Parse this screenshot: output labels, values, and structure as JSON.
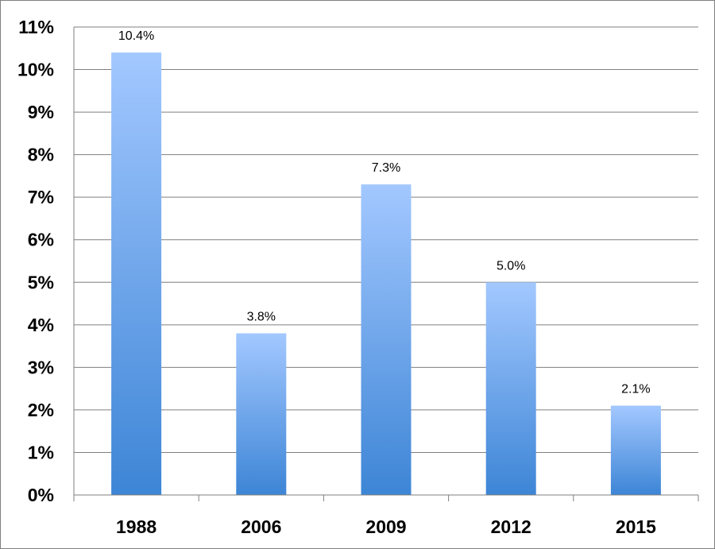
{
  "chart_data": {
    "type": "bar",
    "title": "",
    "xlabel": "",
    "ylabel": "",
    "categories": [
      "1988",
      "2006",
      "2009",
      "2012",
      "2015"
    ],
    "values": [
      10.4,
      3.8,
      7.3,
      5.0,
      2.1
    ],
    "data_labels": [
      "10.4%",
      "3.8%",
      "7.3%",
      "5.0%",
      "2.1%"
    ],
    "ylim": [
      0,
      11
    ],
    "yticks": [
      0,
      1,
      2,
      3,
      4,
      5,
      6,
      7,
      8,
      9,
      10,
      11
    ],
    "ytick_labels": [
      "0%",
      "1%",
      "2%",
      "3%",
      "4%",
      "5%",
      "6%",
      "7%",
      "8%",
      "9%",
      "10%",
      "11%"
    ],
    "grid": true,
    "legend": "none",
    "colors": {
      "bar_top": "#a3c8ff",
      "bar_bottom": "#3d85d6",
      "grid": "#7f7f7f",
      "axis": "#7f7f7f"
    }
  }
}
